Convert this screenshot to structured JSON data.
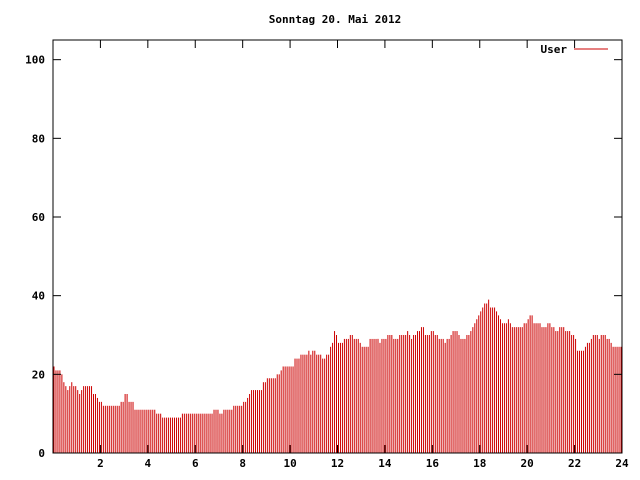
{
  "chart_data": {
    "type": "bar",
    "title": "Sonntag 20. Mai 2012",
    "xlabel": "",
    "ylabel": "",
    "xlim": [
      0,
      24
    ],
    "ylim": [
      0,
      105
    ],
    "x_ticks": [
      2,
      4,
      6,
      8,
      10,
      12,
      14,
      16,
      18,
      20,
      22,
      24
    ],
    "y_ticks": [
      0,
      20,
      40,
      60,
      80,
      100
    ],
    "grid": false,
    "legend_position": "top-right",
    "series": [
      {
        "name": "User",
        "color": "#cc0000",
        "values": [
          22,
          21,
          21,
          21,
          20,
          18,
          17,
          16,
          17,
          18,
          17,
          17,
          16,
          15,
          16,
          17,
          17,
          17,
          17,
          17,
          15,
          15,
          14,
          13,
          13,
          12,
          12,
          12,
          12,
          12,
          12,
          12,
          12,
          12,
          13,
          13,
          15,
          15,
          13,
          13,
          13,
          11,
          11,
          11,
          11,
          11,
          11,
          11,
          11,
          11,
          11,
          11,
          10,
          10,
          10,
          9,
          9,
          9,
          9,
          9,
          9,
          9,
          9,
          9,
          9,
          10,
          10,
          10,
          10,
          10,
          10,
          10,
          10,
          10,
          10,
          10,
          10,
          10,
          10,
          10,
          10,
          11,
          11,
          11,
          10,
          10,
          11,
          11,
          11,
          11,
          11,
          12,
          12,
          12,
          12,
          12,
          13,
          13,
          14,
          15,
          16,
          16,
          16,
          16,
          16,
          16,
          18,
          18,
          19,
          19,
          19,
          19,
          19,
          20,
          20,
          21,
          22,
          22,
          22,
          22,
          22,
          22,
          24,
          24,
          24,
          25,
          25,
          25,
          25,
          26,
          25,
          26,
          26,
          25,
          25,
          25,
          24,
          24,
          25,
          25,
          27,
          28,
          31,
          30,
          28,
          28,
          28,
          29,
          29,
          29,
          30,
          30,
          29,
          29,
          29,
          28,
          27,
          27,
          27,
          27,
          29,
          29,
          29,
          29,
          29,
          28,
          29,
          29,
          29,
          30,
          30,
          30,
          29,
          29,
          29,
          30,
          30,
          30,
          30,
          31,
          30,
          29,
          30,
          30,
          31,
          31,
          32,
          32,
          30,
          30,
          30,
          31,
          31,
          30,
          30,
          29,
          29,
          29,
          28,
          29,
          29,
          30,
          31,
          31,
          31,
          30,
          29,
          29,
          29,
          30,
          30,
          31,
          32,
          33,
          34,
          35,
          36,
          37,
          38,
          38,
          39,
          37,
          37,
          37,
          36,
          35,
          34,
          33,
          33,
          33,
          34,
          33,
          32,
          32,
          32,
          32,
          32,
          32,
          33,
          33,
          34,
          35,
          35,
          33,
          33,
          33,
          33,
          32,
          32,
          32,
          33,
          33,
          32,
          32,
          31,
          31,
          32,
          32,
          32,
          31,
          31,
          31,
          30,
          30,
          29,
          26,
          26,
          26,
          26,
          27,
          28,
          28,
          29,
          30,
          30,
          30,
          29,
          30,
          30,
          30,
          29,
          29,
          28,
          27,
          27,
          27,
          27,
          27
        ]
      }
    ]
  }
}
